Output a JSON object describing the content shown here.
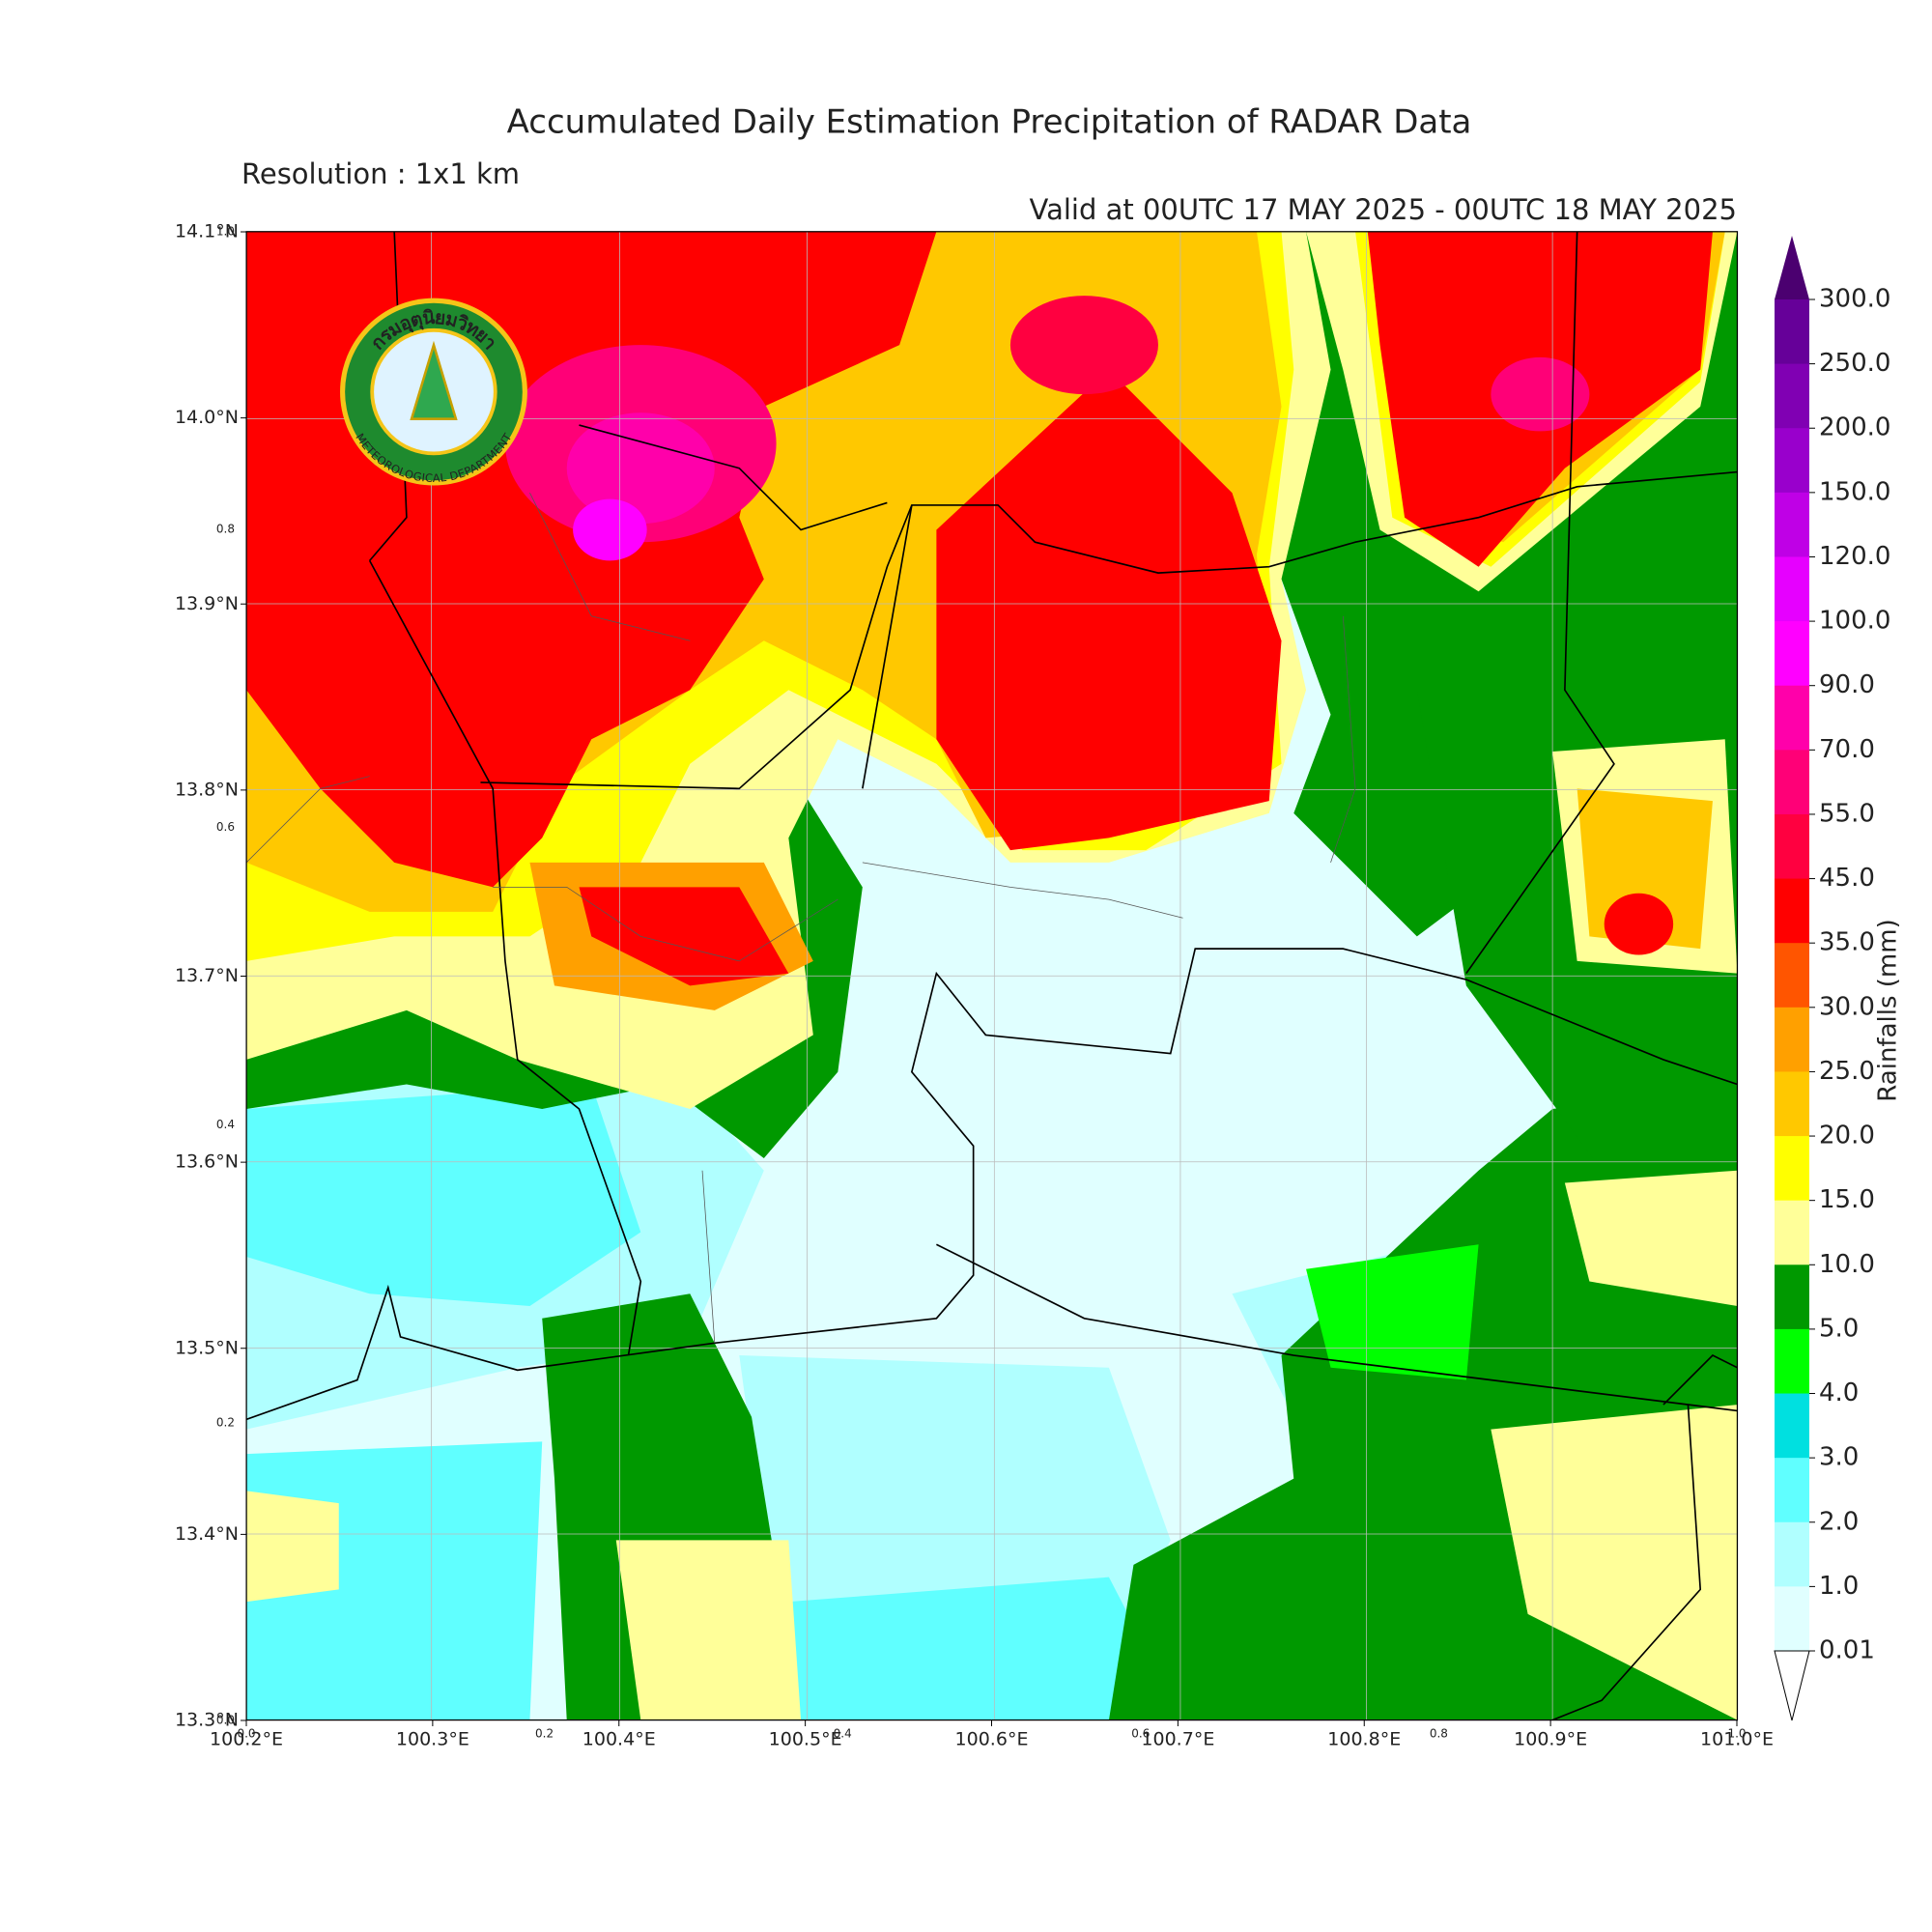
{
  "header": {
    "title": "Accumulated Daily Estimation Precipitation of RADAR Data",
    "resolution": "Resolution : 1x1 km",
    "valid": "Valid at 00UTC 17 MAY 2025 - 00UTC 18 MAY 2025"
  },
  "logo": {
    "thai_name": "กรมอุตุนิยมวิทยา",
    "english_name": "METEOROLOGICAL DEPARTMENT"
  },
  "map": {
    "lat_ticks": [
      "14.1°N",
      "14.0°N",
      "13.9°N",
      "13.8°N",
      "13.7°N",
      "13.6°N",
      "13.5°N",
      "13.4°N",
      "13.3°N"
    ],
    "lon_ticks": [
      "100.2°E",
      "100.3°E",
      "100.4°E",
      "100.5°E",
      "100.6°E",
      "100.7°E",
      "100.8°E",
      "100.9°E",
      "101.0°E"
    ],
    "frac_ticks_y": [
      "0.0",
      "0.2",
      "0.4",
      "0.6",
      "0.8",
      "1.0"
    ],
    "frac_ticks_x": [
      "0.0",
      "0.2",
      "0.4",
      "0.6",
      "0.8",
      "1.0"
    ]
  },
  "colorbar": {
    "label": "Rainfalls (mm)",
    "levels": [
      "300.0",
      "250.0",
      "200.0",
      "150.0",
      "120.0",
      "100.0",
      "90.0",
      "70.0",
      "55.0",
      "45.0",
      "35.0",
      "30.0",
      "25.0",
      "20.0",
      "15.0",
      "10.0",
      "5.0",
      "4.0",
      "3.0",
      "2.0",
      "1.0",
      "0.01"
    ],
    "colors": [
      "#660099",
      "#8000b3",
      "#9900cc",
      "#bf00e6",
      "#e600ff",
      "#ff00ff",
      "#ff00aa",
      "#ff0077",
      "#ff0040",
      "#ff0000",
      "#ff5500",
      "#ffa000",
      "#ffc800",
      "#ffff00",
      "#ffff99",
      "#009900",
      "#00ff00",
      "#00e0e0",
      "#60ffff",
      "#b0ffff",
      "#e0ffff"
    ],
    "over_color": "#4b0070",
    "under_color": "#ffffff"
  }
}
